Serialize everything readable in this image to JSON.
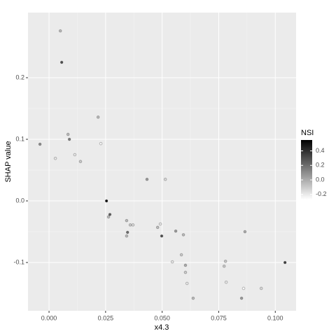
{
  "chart_data": {
    "type": "scatter",
    "x_label": "x4.3",
    "y_label": "SHAP value",
    "xlim": [
      -0.0093,
      0.1092
    ],
    "ylim": [
      -0.1784,
      0.3057
    ],
    "xticks": [
      {
        "value": 0,
        "label": "0.000"
      },
      {
        "value": 0.025,
        "label": "0.025"
      },
      {
        "value": 0.05,
        "label": "0.050"
      },
      {
        "value": 0.075,
        "label": "0.075"
      },
      {
        "value": 0.1,
        "label": "0.100"
      }
    ],
    "yticks": [
      -0.1,
      {
        "value": 0,
        "label": "0.0"
      },
      0.1,
      0.2
    ],
    "grid": true,
    "legend_title": "NSI",
    "color_lim": [
      -0.27,
      0.55
    ],
    "color_ticks": [
      -0.2,
      {
        "value": 0,
        "label": "0.0"
      },
      0.2,
      0.4
    ],
    "color_low": "#ffffff",
    "color_high": "#000000",
    "x": [
      0.005,
      0.0056,
      -0.004,
      0.0028,
      0.0084,
      0.009,
      0.0114,
      0.0139,
      0.0217,
      0.0229,
      0.0254,
      0.0269,
      0.0263,
      0.0343,
      0.0347,
      0.0343,
      0.0359,
      0.0371,
      0.0433,
      0.0514,
      0.048,
      0.0492,
      0.0498,
      0.056,
      0.0594,
      0.0585,
      0.0545,
      0.0603,
      0.0603,
      0.061,
      0.0637,
      0.078,
      0.0774,
      0.0783,
      0.0866,
      0.0851,
      0.086,
      0.0938,
      0.1043
    ],
    "values": [
      0.276,
      0.225,
      0.092,
      0.069,
      0.108,
      0.1,
      0.075,
      0.064,
      0.136,
      0.093,
      0.0,
      -0.022,
      -0.026,
      -0.032,
      -0.051,
      -0.057,
      -0.039,
      -0.039,
      0.035,
      0.035,
      -0.043,
      -0.0375,
      -0.057,
      -0.049,
      -0.055,
      -0.0875,
      -0.099,
      -0.1045,
      -0.116,
      -0.134,
      -0.158,
      -0.098,
      -0.106,
      -0.132,
      -0.05,
      -0.158,
      -0.142,
      -0.142,
      -0.1
    ],
    "color_values": [
      -0.05,
      0.3,
      0.1,
      -0.2,
      -0.05,
      0.15,
      -0.2,
      -0.1,
      -0.05,
      -0.25,
      0.5,
      0.25,
      -0.05,
      -0.05,
      0.2,
      -0.05,
      -0.1,
      -0.15,
      0.05,
      -0.15,
      -0.05,
      -0.2,
      0.3,
      0.05,
      -0.05,
      -0.1,
      -0.2,
      0,
      -0.1,
      -0.2,
      -0.05,
      -0.1,
      -0.1,
      -0.2,
      0,
      0.05,
      -0.25,
      -0.15,
      0.35
    ]
  }
}
